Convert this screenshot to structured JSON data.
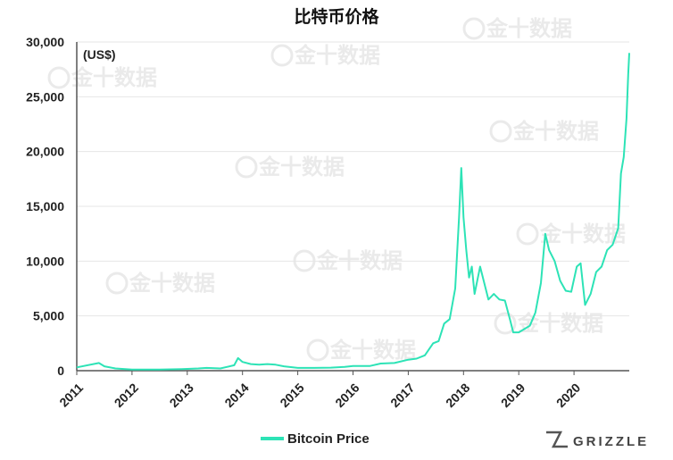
{
  "title": "比特币价格",
  "unit_label": "(US$)",
  "watermark": "金十数据",
  "brand": "GRIZZLE",
  "colors": {
    "series": "#2de3b6",
    "axis": "#555555",
    "grid": "#e6e6e6",
    "watermark": "#d9d9d9"
  },
  "chart_data": {
    "type": "line",
    "title": "比特币价格",
    "ylabel": "(US$)",
    "xlabel": "",
    "ylim": [
      0,
      30000
    ],
    "xlim": [
      2011,
      2021
    ],
    "y_ticks": [
      0,
      5000,
      10000,
      15000,
      20000,
      25000,
      30000
    ],
    "y_tick_labels": [
      "0",
      "5,000",
      "10,000",
      "15,000",
      "20,000",
      "25,000",
      "30,000"
    ],
    "x_ticks": [
      2011,
      2012,
      2013,
      2014,
      2015,
      2016,
      2017,
      2018,
      2019,
      2020
    ],
    "x_tick_labels": [
      "2011",
      "2012",
      "2013",
      "2014",
      "2015",
      "2016",
      "2017",
      "2018",
      "2019",
      "2020"
    ],
    "grid": "horizontal",
    "legend": "bottom-center",
    "series": [
      {
        "name": "Bitcoin Price",
        "color": "#2de3b6",
        "x": [
          2011.0,
          2011.4,
          2011.5,
          2011.7,
          2012.0,
          2012.5,
          2012.9,
          2013.2,
          2013.35,
          2013.6,
          2013.85,
          2013.92,
          2014.0,
          2014.15,
          2014.3,
          2014.45,
          2014.6,
          2014.75,
          2015.0,
          2015.3,
          2015.6,
          2015.85,
          2016.0,
          2016.3,
          2016.5,
          2016.75,
          2017.0,
          2017.15,
          2017.3,
          2017.45,
          2017.55,
          2017.65,
          2017.75,
          2017.85,
          2017.92,
          2017.96,
          2018.0,
          2018.05,
          2018.1,
          2018.15,
          2018.2,
          2018.3,
          2018.4,
          2018.45,
          2018.55,
          2018.65,
          2018.75,
          2018.85,
          2018.9,
          2019.0,
          2019.1,
          2019.2,
          2019.3,
          2019.4,
          2019.48,
          2019.55,
          2019.65,
          2019.75,
          2019.85,
          2019.95,
          2020.05,
          2020.12,
          2020.2,
          2020.3,
          2020.4,
          2020.5,
          2020.6,
          2020.7,
          2020.8,
          2020.85,
          2020.9,
          2020.95,
          2020.98,
          2021.0
        ],
        "values": [
          300,
          700,
          400,
          200,
          100,
          100,
          150,
          200,
          250,
          200,
          500,
          1150,
          800,
          600,
          550,
          600,
          550,
          400,
          250,
          250,
          280,
          350,
          430,
          420,
          650,
          700,
          1000,
          1100,
          1400,
          2500,
          2700,
          4300,
          4700,
          7500,
          14000,
          18500,
          14000,
          11000,
          8500,
          9500,
          7000,
          9500,
          7500,
          6500,
          7000,
          6500,
          6400,
          4500,
          3500,
          3500,
          3800,
          4100,
          5300,
          8000,
          12500,
          11000,
          10000,
          8200,
          7300,
          7200,
          9500,
          9800,
          6000,
          7000,
          9000,
          9500,
          11000,
          11500,
          13000,
          18000,
          19500,
          23000,
          27000,
          29000
        ]
      }
    ]
  }
}
